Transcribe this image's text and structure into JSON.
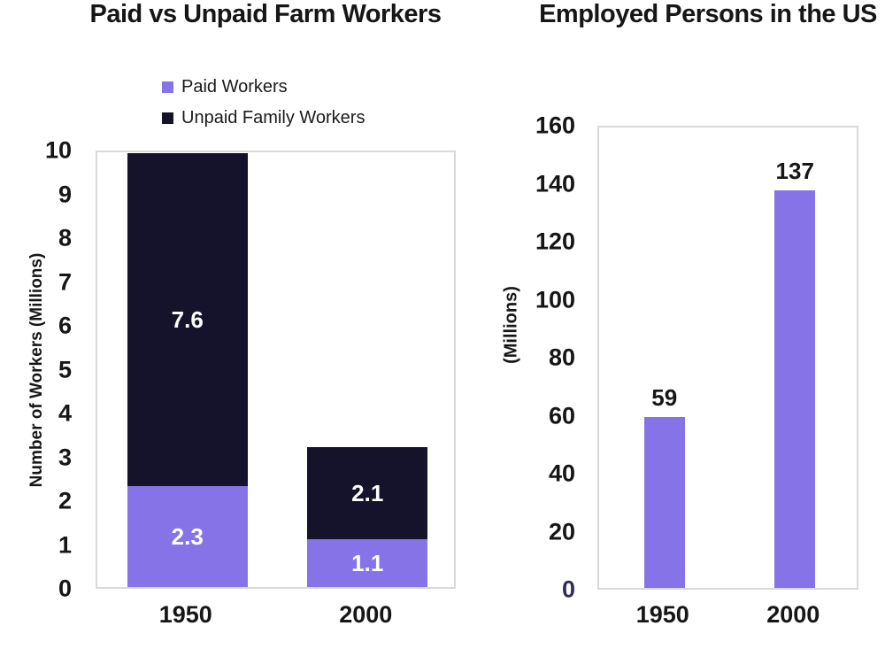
{
  "chart_data": [
    {
      "type": "bar",
      "stacked": true,
      "title": "Paid vs Unpaid Farm Workers",
      "ylabel": "Number of Workers (Millions)",
      "xlabel": "",
      "categories": [
        "1950",
        "2000"
      ],
      "series": [
        {
          "name": "Paid Workers",
          "values": [
            2.3,
            1.1
          ],
          "color": "#8673e8",
          "label_color": "#ffffff"
        },
        {
          "name": "Unpaid Family Workers",
          "values": [
            7.6,
            2.1
          ],
          "color": "#15132b",
          "label_color": "#ffffff"
        }
      ],
      "bar_totals": [
        9.9,
        3.2
      ],
      "ylim": [
        0,
        10
      ],
      "yticks": [
        0,
        1,
        2,
        3,
        4,
        5,
        6,
        7,
        8,
        9,
        10
      ],
      "legend_position": "top",
      "grid": false
    },
    {
      "type": "bar",
      "stacked": false,
      "title": "Employed Persons in the US",
      "ylabel": "(Millions)",
      "xlabel": "",
      "categories": [
        "1950",
        "2000"
      ],
      "values": [
        59,
        137
      ],
      "bar_color": "#8673e8",
      "value_label_color": "#161616",
      "ylim": [
        0,
        160
      ],
      "yticks": [
        0,
        20,
        40,
        60,
        80,
        100,
        120,
        140,
        160
      ],
      "zero_tick_color": "#312e58",
      "legend_position": "none",
      "grid": false
    }
  ],
  "colors": {
    "paid_purple": "#8673e8",
    "unpaid_navy": "#15132b",
    "plot_border": "#d9d9d9",
    "text": "#161616"
  }
}
